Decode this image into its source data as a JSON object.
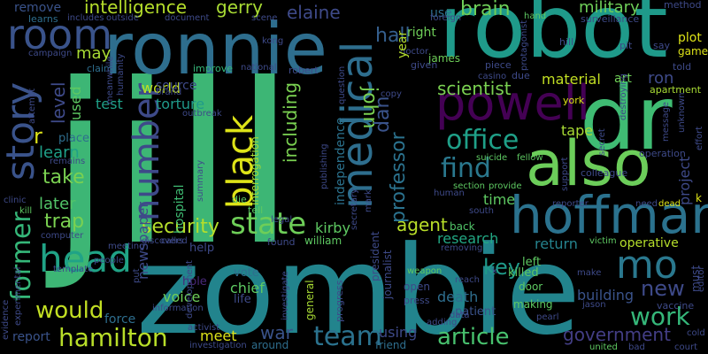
{
  "colors": {
    "background": "#000000"
  },
  "words": {
    "jill": "jill",
    "zombie": "zombie",
    "robot": "robot",
    "ronnie": "ronnie",
    "dr": "dr",
    "also": "also",
    "hoffman": "hoffman",
    "powell": "powell",
    "medical": "medical",
    "black": "black",
    "number": "number",
    "head": "head",
    "room": "room",
    "story": "story",
    "former": "former",
    "mo": "mo",
    "state": "state",
    "office": "office",
    "find": "find",
    "article": "article",
    "work": "work",
    "new": "new",
    "team": "team",
    "hamilton": "hamilton",
    "would": "would",
    "security": "security",
    "intelligence": "intelligence",
    "gerry": "gerry",
    "elaine": "elaine",
    "hall": "hall",
    "brain": "brain",
    "military": "military",
    "john": "john",
    "including": "including",
    "professor": "professor",
    "dan": "dan",
    "scientist": "scientist",
    "agent": "agent",
    "key": "key",
    "government": "government",
    "war": "war",
    "trap": "trap",
    "take": "take",
    "learn": "learn",
    "later": "later",
    "test": "test",
    "torture": "torture",
    "world": "world",
    "level": "level",
    "may": "may",
    "project": "project",
    "tape": "tape",
    "ron": "ron",
    "material": "material",
    "research": "research",
    "return": "return",
    "operative": "operative",
    "kirby": "kirby",
    "independence": "independence",
    "newspaper": "newspaper",
    "hospital": "hospital",
    "voice": "voice",
    "meet": "meet",
    "death": "death",
    "building": "building",
    "patient": "patient",
    "using": "using",
    "report": "report",
    "force": "force",
    "chief": "chief",
    "life": "life",
    "vote": "vote",
    "hole": "hole",
    "help": "help",
    "source": "source",
    "used": "used",
    "place": "place",
    "remove": "remove",
    "learns": "learns",
    "includes": "includes",
    "document": "document",
    "use": "use",
    "right": "right",
    "year": "year",
    "james": "james",
    "given": "given",
    "art": "art",
    "york": "york",
    "plot": "plot",
    "game": "game",
    "apartment": "apartment",
    "told": "told",
    "method": "method",
    "hand": "hand",
    "foreign": "foreign",
    "surveillance": "surveillance",
    "doctor": "doctor",
    "piece": "piece",
    "due": "due",
    "hill": "hill",
    "pit": "pit",
    "say": "say",
    "casino": "casino",
    "national": "national",
    "robert": "robert",
    "improve": "improve",
    "claim": "claim",
    "meanwhile": "meanwhile",
    "campaign": "campaign",
    "kong": "kong",
    "scene": "scene",
    "outside": "outside",
    "humanity": "humanity",
    "copy": "copy",
    "question": "question",
    "protagonist": "protagonist",
    "destroying": "destroying",
    "message": "message",
    "unknown": "unknown",
    "operation": "operation",
    "fellow": "fellow",
    "colleague": "colleague",
    "suicide": "suicide",
    "reporter": "reporter",
    "section": "section",
    "provide": "provide",
    "time": "time",
    "back": "back",
    "left": "left",
    "killed": "killed",
    "door": "door",
    "making": "making",
    "make": "make",
    "vaccine": "vaccine",
    "editor": "editor",
    "must": "must",
    "open": "open",
    "press": "press",
    "weapon": "weapon",
    "reach": "reach",
    "removing": "removing",
    "victim": "victim",
    "south": "south",
    "human": "human",
    "secret": "secret",
    "support": "support",
    "need": "need",
    "dead": "dead",
    "jason": "jason",
    "pearl": "pearl",
    "adding": "adding",
    "data": "data",
    "united": "united",
    "bad": "bad",
    "court": "court",
    "cold": "cold",
    "friend": "friend",
    "around": "around",
    "activist": "activist",
    "investigation": "investigation",
    "information": "information",
    "journalist": "journalist",
    "president": "president",
    "investigate": "investigate",
    "general": "general",
    "progress": "progress",
    "william": "william",
    "found": "found",
    "legal": "legal",
    "tell": "tell",
    "die": "die",
    "meeting": "meeting",
    "discovers": "discovers",
    "called": "called",
    "put": "put",
    "people": "people",
    "computer": "computer",
    "template": "template",
    "evidence": "evidence",
    "experimental": "experimental",
    "clinic": "clinic",
    "kill": "kill",
    "remains": "remains",
    "attempt": "attempt",
    "interrogation": "interrogation",
    "summary": "summary",
    "development": "development",
    "outbreak": "outbreak",
    "brand": "brand",
    "publishing": "publishing",
    "secretary": "secretary",
    "mark": "mark",
    "effort": "effort",
    "k": "k",
    "r": "r",
    "x": "x",
    "dead2": "dead"
  }
}
